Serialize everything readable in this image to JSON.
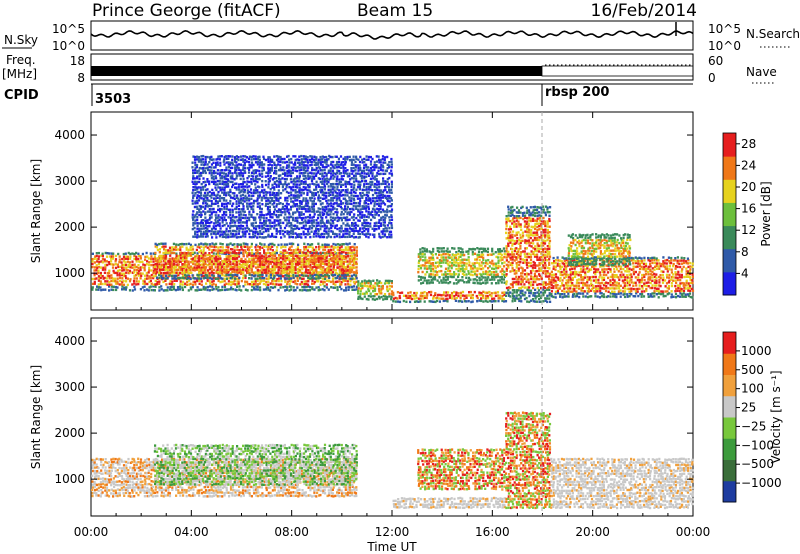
{
  "header": {
    "station": "Prince George (fitACF)",
    "beam": "Beam 15",
    "date": "16/Feb/2014"
  },
  "nsky_panel": {
    "left_label": "N.Sky",
    "right_label": "N.Search",
    "left_ticks": [
      "10^5",
      "10^0"
    ],
    "right_ticks": [
      "10^5",
      "10^0"
    ]
  },
  "freq_panel": {
    "left_label_line1": "Freq.",
    "left_label_line2": "[MHz]",
    "right_label": "Nave",
    "left_ticks": [
      "18",
      "8"
    ],
    "right_ticks": [
      "60",
      "0"
    ]
  },
  "cpid_panel": {
    "label": "CPID",
    "segments": [
      {
        "name": "3503",
        "start_hour": 0,
        "end_hour": 18
      },
      {
        "name": "rbsp 200",
        "start_hour": 18,
        "end_hour": 24
      }
    ]
  },
  "chart_data": [
    {
      "type": "heatmap",
      "name": "power",
      "ylabel": "Slant Range [km]",
      "xlabel": "Time UT",
      "xlim": [
        0,
        24
      ],
      "ylim": [
        200,
        4500
      ],
      "x_ticks": [
        "00:00",
        "04:00",
        "08:00",
        "12:00",
        "16:00",
        "20:00",
        "00:00"
      ],
      "y_ticks": [
        "1000",
        "2000",
        "3000",
        "4000"
      ],
      "colorbar": {
        "label": "Power [dB]",
        "ticks": [
          "4",
          "8",
          "12",
          "16",
          "20",
          "24",
          "28"
        ],
        "colors": [
          "#1e1ee6",
          "#2f5aa8",
          "#3a8a5a",
          "#6cbf3c",
          "#e6d21e",
          "#f07818",
          "#e61e1e"
        ],
        "range": [
          0,
          30
        ]
      },
      "bands": [
        {
          "start_hour": 0.0,
          "end_hour": 10.6,
          "range_low": 650,
          "range_high": 1500,
          "level": "high"
        },
        {
          "start_hour": 2.5,
          "end_hour": 10.6,
          "range_low": 900,
          "range_high": 1700,
          "level": "high"
        },
        {
          "start_hour": 10.6,
          "end_hour": 12.0,
          "range_low": 450,
          "range_high": 900,
          "level": "mid"
        },
        {
          "start_hour": 12.0,
          "end_hour": 16.5,
          "range_low": 400,
          "range_high": 650,
          "level": "high"
        },
        {
          "start_hour": 13.0,
          "end_hour": 16.5,
          "range_low": 800,
          "range_high": 1600,
          "level": "mid"
        },
        {
          "start_hour": 16.5,
          "end_hour": 18.3,
          "range_low": 400,
          "range_high": 2500,
          "level": "high"
        },
        {
          "start_hour": 18.3,
          "end_hour": 24.0,
          "range_low": 500,
          "range_high": 1400,
          "level": "high"
        },
        {
          "start_hour": 19.0,
          "end_hour": 21.5,
          "range_low": 1200,
          "range_high": 1900,
          "level": "mid"
        },
        {
          "start_hour": 4.0,
          "end_hour": 12.0,
          "range_low": 1800,
          "range_high": 3600,
          "level": "low"
        }
      ]
    },
    {
      "type": "heatmap",
      "name": "velocity",
      "ylabel": "Slant Range [km]",
      "xlabel": "Time UT",
      "xlim": [
        0,
        24
      ],
      "ylim": [
        200,
        4500
      ],
      "x_ticks": [
        "00:00",
        "04:00",
        "08:00",
        "12:00",
        "16:00",
        "20:00",
        "00:00"
      ],
      "y_ticks": [
        "1000",
        "2000",
        "3000",
        "4000"
      ],
      "colorbar": {
        "label": "Velocity [m s⁻¹]",
        "ticks": [
          "1000",
          "500",
          "100",
          "25",
          "−25",
          "−100",
          "−500",
          "−1000"
        ],
        "colors": [
          "#1e3ca0",
          "#3a6e3a",
          "#3c9b3c",
          "#78c83c",
          "#c8c8c8",
          "#f0a03c",
          "#f07818",
          "#e61e1e"
        ]
      },
      "bands": [
        {
          "start_hour": 0.0,
          "end_hour": 10.6,
          "range_low": 650,
          "range_high": 1500,
          "level": "mixed"
        },
        {
          "start_hour": 2.5,
          "end_hour": 10.6,
          "range_low": 900,
          "range_high": 1800,
          "level": "green"
        },
        {
          "start_hour": 12.0,
          "end_hour": 16.5,
          "range_low": 400,
          "range_high": 650,
          "level": "gray"
        },
        {
          "start_hour": 13.0,
          "end_hour": 16.5,
          "range_low": 800,
          "range_high": 1700,
          "level": "orange"
        },
        {
          "start_hour": 16.5,
          "end_hour": 18.3,
          "range_low": 400,
          "range_high": 2500,
          "level": "orange"
        },
        {
          "start_hour": 18.3,
          "end_hour": 24.0,
          "range_low": 400,
          "range_high": 1500,
          "level": "gray"
        }
      ]
    }
  ]
}
